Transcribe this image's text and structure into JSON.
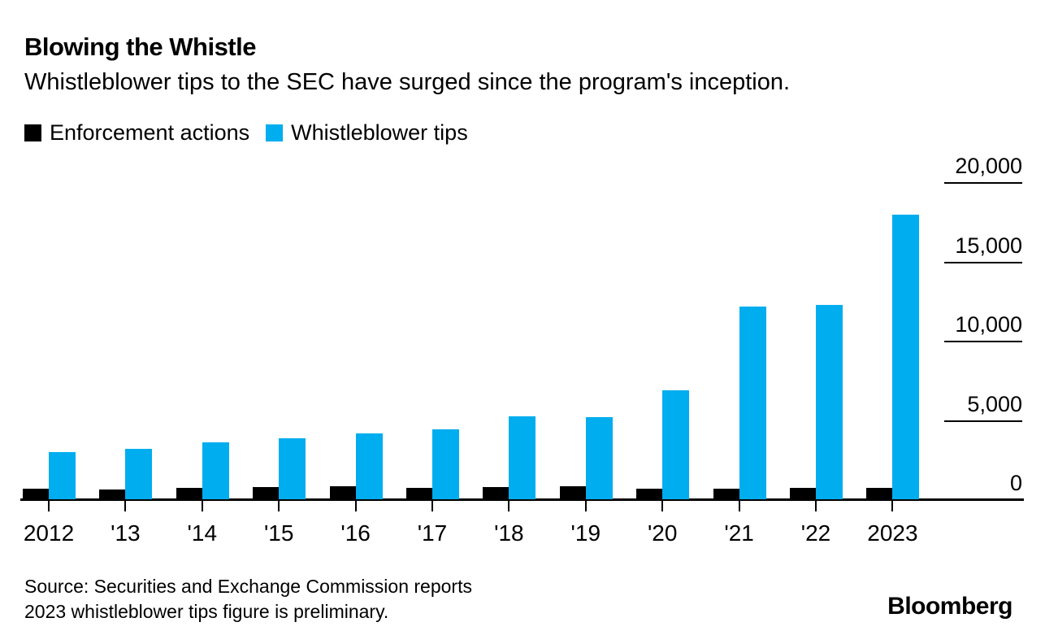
{
  "header": {
    "title": "Blowing the Whistle",
    "subtitle": "Whistleblower tips to the SEC have surged since the program's inception."
  },
  "chart_data": {
    "type": "bar",
    "title": "Blowing the Whistle",
    "subtitle": "Whistleblower tips to the SEC have surged since the program's inception.",
    "categories": [
      "2012",
      "'13",
      "'14",
      "'15",
      "'16",
      "'17",
      "'18",
      "'19",
      "'20",
      "'21",
      "'22",
      "2023"
    ],
    "series": [
      {
        "name": "Enforcement actions",
        "color": "#000000",
        "values": [
          730,
          690,
          755,
          805,
          865,
          755,
          820,
          860,
          715,
          700,
          760,
          785
        ]
      },
      {
        "name": "Whistleblower tips",
        "color": "#00ADEF",
        "values": [
          3001,
          3238,
          3620,
          3923,
          4218,
          4484,
          5282,
          5212,
          6911,
          12210,
          12300,
          18000
        ]
      }
    ],
    "xlabel": "",
    "ylabel": "",
    "ylim": [
      0,
      20000
    ],
    "yticks": [
      0,
      5000,
      10000,
      15000,
      20000
    ],
    "ytick_labels": [
      "0",
      "5,000",
      "10,000",
      "15,000",
      "20,000"
    ],
    "ytick_side": "right",
    "grid": "tick-underlines-right",
    "legend_position": "top-left"
  },
  "footer": {
    "source_line1": "Source: Securities and Exchange Commission reports",
    "source_line2": "2023 whistleblower tips figure is preliminary.",
    "logo": "Bloomberg"
  }
}
